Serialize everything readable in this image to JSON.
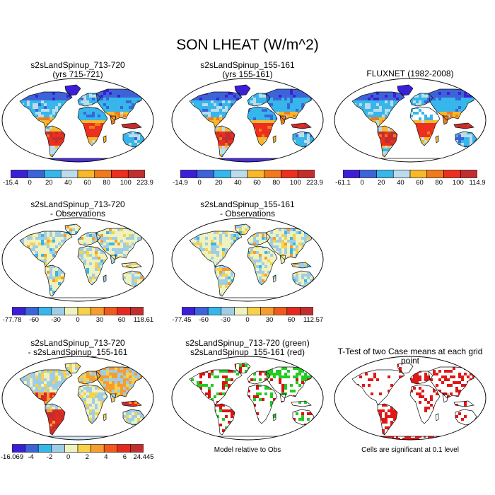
{
  "figure_title": "SON LHEAT (W/m^2)",
  "palettes": {
    "seq": [
      "#3a1fd6",
      "#3c64d8",
      "#36b6ea",
      "#bcdcec",
      "#f7b82b",
      "#f07a1c",
      "#ec2f1e",
      "#c22e2e"
    ],
    "diff": [
      "#3a1fd6",
      "#3c64d8",
      "#36b6ea",
      "#9fcde6",
      "#eef2be",
      "#f7d14a",
      "#f59d2e",
      "#ef5a1f",
      "#e42a1e",
      "#c22e2e"
    ]
  },
  "chart_data": [
    {
      "type": "heatmap",
      "map": "world",
      "title": [
        "s2sLandSpinup_713-720",
        "(yrs 715-721)"
      ],
      "palette": "seq",
      "style": "clim",
      "antarctica": "#4a2ee0",
      "colorbar": {
        "labels": [
          "-15.4",
          "0",
          "20",
          "40",
          "60",
          "80",
          "100",
          "223.9"
        ]
      }
    },
    {
      "type": "heatmap",
      "map": "world",
      "title": [
        "s2sLandSpinup_155-161",
        "(yrs 155-161)"
      ],
      "palette": "seq",
      "style": "clim",
      "antarctica": "#4a2ee0",
      "colorbar": {
        "labels": [
          "-14.9",
          "0",
          "20",
          "40",
          "60",
          "80",
          "100",
          "223.9"
        ]
      }
    },
    {
      "type": "heatmap",
      "map": "world",
      "title": [
        "FLUXNET (1982-2008)"
      ],
      "palette": "seq",
      "style": "clim",
      "antarctica": null,
      "colorbar": {
        "labels": [
          "-61.1",
          "0",
          "20",
          "40",
          "60",
          "80",
          "100",
          "114.9"
        ]
      }
    },
    {
      "type": "heatmap",
      "map": "world",
      "title": [
        "s2sLandSpinup_713-720",
        "- Observations"
      ],
      "palette": "diff",
      "style": "bias",
      "antarctica": null,
      "colorbar": {
        "labels": [
          "-77.78",
          "-60",
          "-30",
          "0",
          "30",
          "60",
          "118.61"
        ]
      }
    },
    {
      "type": "heatmap",
      "map": "world",
      "title": [
        "s2sLandSpinup_155-161",
        "- Observations"
      ],
      "palette": "diff",
      "style": "bias",
      "antarctica": null,
      "colorbar": {
        "labels": [
          "-77.45",
          "-60",
          "-30",
          "0",
          "30",
          "60",
          "112.57"
        ]
      }
    },
    {
      "type": "heatmap",
      "map": "world",
      "title": [
        "s2sLandSpinup_713-720",
        "- s2sLandSpinup_155-161"
      ],
      "palette": "diff",
      "style": "casediff",
      "antarctica": "#cfe3ee",
      "colorbar": {
        "labels": [
          "-16.069",
          "-4",
          "-2",
          "0",
          "2",
          "4",
          "6",
          "24.445"
        ]
      }
    },
    {
      "type": "heatmap",
      "map": "world",
      "title": [
        "s2sLandSpinup_713-720 (green)",
        "s2sLandSpinup_155-161 (red)"
      ],
      "palette": "seq",
      "style": "compare",
      "antarctica": null,
      "note": "Model relative to Obs"
    },
    {
      "type": "heatmap",
      "map": "world",
      "title": [
        "T-Test of two Case means at each grid point"
      ],
      "palette": "seq",
      "style": "ttest",
      "antarctica": "#e01818",
      "note": "Cells are significant at 0.1 level"
    }
  ]
}
